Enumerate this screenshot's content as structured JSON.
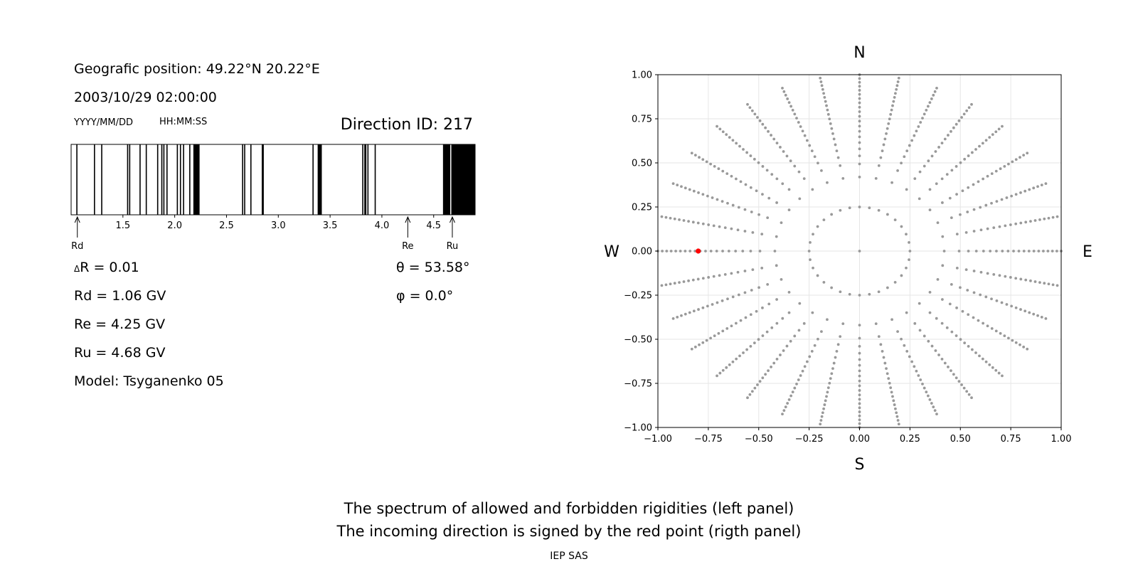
{
  "info": {
    "position": "Geografic position: 49.22°N 20.22°E",
    "datetime": "2003/10/29 02:00:00",
    "date_fmt": "YYYY/MM/DD",
    "time_fmt": "HH:MM:SS",
    "direction": "Direction ID: 217",
    "dR": "R = 0.01",
    "delta_symbol": "Δ",
    "rd": "Rd = 1.06 GV",
    "re": "Re = 4.25 GV",
    "ru": "Ru = 4.68 GV",
    "model": "Model: Tsyganenko 05",
    "theta": "θ = 53.58°",
    "phi": "φ = 0.0°"
  },
  "captions": {
    "line1": "The spectrum of allowed and forbidden rigidities (left panel)",
    "line2": "The incoming direction is signed by the red point (rigth panel)",
    "credit": "IEP SAS"
  },
  "chart_data": [
    {
      "type": "bar",
      "description_role": "rigidity spectrum (black = forbidden, white = allowed)",
      "xlim": [
        1.0,
        4.9
      ],
      "xticks": [
        1.5,
        2.0,
        2.5,
        3.0,
        3.5,
        4.0,
        4.5
      ],
      "xtick_labels": [
        "1.5",
        "2.0",
        "2.5",
        "3.0",
        "3.5",
        "4.0",
        "4.5"
      ],
      "forbidden_bands": [
        [
          1.05,
          1.06
        ],
        [
          1.22,
          1.23
        ],
        [
          1.29,
          1.3
        ],
        [
          1.54,
          1.55
        ],
        [
          1.56,
          1.57
        ],
        [
          1.66,
          1.67
        ],
        [
          1.72,
          1.73
        ],
        [
          1.83,
          1.84
        ],
        [
          1.87,
          1.88
        ],
        [
          1.89,
          1.9
        ],
        [
          1.92,
          1.93
        ],
        [
          2.02,
          2.03
        ],
        [
          2.05,
          2.06
        ],
        [
          2.08,
          2.09
        ],
        [
          2.14,
          2.15
        ],
        [
          2.18,
          2.24
        ],
        [
          2.65,
          2.66
        ],
        [
          2.67,
          2.68
        ],
        [
          2.73,
          2.74
        ],
        [
          2.84,
          2.86
        ],
        [
          3.33,
          3.34
        ],
        [
          3.38,
          3.42
        ],
        [
          3.81,
          3.82
        ],
        [
          3.83,
          3.85
        ],
        [
          3.86,
          3.87
        ],
        [
          3.93,
          3.94
        ],
        [
          4.59,
          4.66
        ],
        [
          4.67,
          4.9
        ]
      ],
      "markers": [
        {
          "label": "Rd",
          "value": 1.06
        },
        {
          "label": "Re",
          "value": 4.25
        },
        {
          "label": "Ru",
          "value": 4.68
        }
      ]
    },
    {
      "type": "scatter",
      "description_role": "asymptotic direction grid",
      "xlim": [
        -1.0,
        1.0
      ],
      "ylim": [
        -1.0,
        1.0
      ],
      "grid": true,
      "xticks": [
        -1.0,
        -0.75,
        -0.5,
        -0.25,
        0.0,
        0.25,
        0.5,
        0.75,
        1.0
      ],
      "yticks": [
        -1.0,
        -0.75,
        -0.5,
        -0.25,
        0.0,
        0.25,
        0.5,
        0.75,
        1.0
      ],
      "xtick_labels": [
        "−1.00",
        "−0.75",
        "−0.50",
        "−0.25",
        "0.00",
        "0.25",
        "0.50",
        "0.75",
        "1.00"
      ],
      "ytick_labels": [
        "−1.00",
        "−0.75",
        "−0.50",
        "−0.25",
        "0.00",
        "0.25",
        "0.50",
        "0.75",
        "1.00"
      ],
      "compass": {
        "north": "N",
        "south": "S",
        "west": "W",
        "east": "E"
      },
      "grid_points": {
        "center": [
          0,
          0
        ],
        "ring_radius": 0.25,
        "ring_count": 32,
        "spoke_count": 32,
        "spoke_angle_step_deg": 11.25,
        "spoke_radius_start": 0.42,
        "spoke_radius_end": 1.0,
        "spoke_count_per_line": 20
      },
      "highlight_point": {
        "x": -0.8,
        "y": 0.0,
        "color": "#ff0000"
      },
      "point_color": "#999999"
    }
  ]
}
